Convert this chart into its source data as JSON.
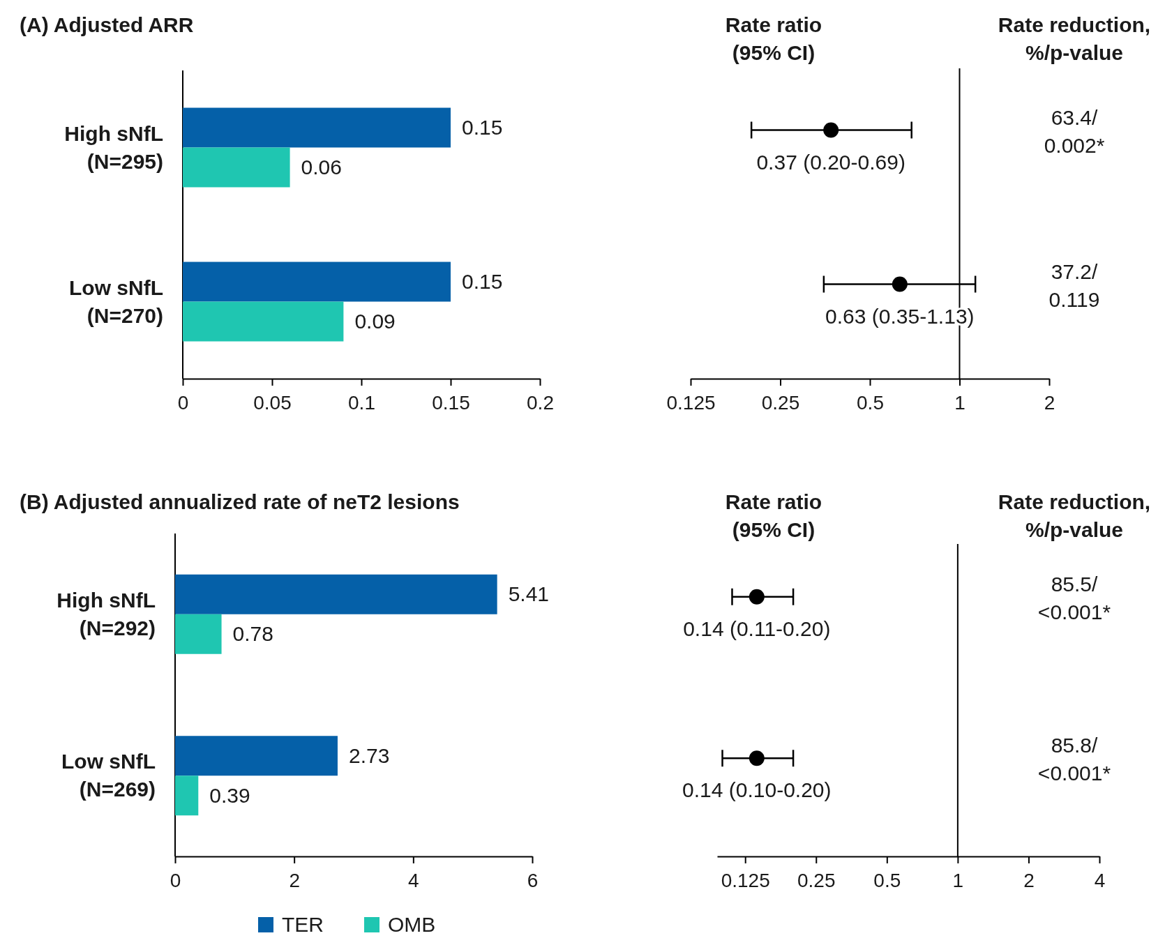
{
  "chart_data": [
    {
      "type": "bar",
      "orientation": "horizontal",
      "title": "(A) Adjusted ARR",
      "categories": [
        "High sNfL\n(N=295)",
        "Low sNfL\n(N=270)"
      ],
      "series": [
        {
          "color": "#0560a8",
          "values": [
            0.15,
            0.15
          ]
        },
        {
          "color": "#1fc6b1",
          "values": [
            0.06,
            0.09
          ]
        }
      ],
      "xlim": [
        0,
        0.2
      ],
      "xticks": [
        0,
        0.05,
        0.1,
        0.15,
        0.2
      ],
      "data_labels": true
    },
    {
      "type": "scatter",
      "orientation": "horizontal",
      "title": "Rate ratio\n(95% CI)",
      "categories": [
        null,
        null
      ],
      "values": [
        0.37,
        0.63
      ],
      "errors": [
        [
          0.2,
          0.69
        ],
        [
          0.35,
          1.13
        ]
      ],
      "value_labels": [
        "0.37 (0.20-0.69)",
        "0.63 (0.35-1.13)"
      ],
      "color": "#000000",
      "marker": "circle",
      "log": "x",
      "xlim": [
        0.125,
        2
      ],
      "xticks": [
        0.125,
        0.25,
        0.5,
        1,
        2
      ],
      "ref_lines": [
        {
          "axis": "x",
          "value": 1
        }
      ],
      "annotations": [
        "Rate reduction,\n%/p-value",
        "63.4/\n0.002*",
        "37.2/\n0.119"
      ]
    },
    {
      "type": "bar",
      "orientation": "horizontal",
      "title": "(B) Adjusted annualized rate of neT2 lesions",
      "categories": [
        "High sNfL\n(N=292)",
        "Low sNfL\n(N=269)"
      ],
      "series": [
        {
          "name": "TER",
          "color": "#0560a8",
          "values": [
            5.41,
            2.73
          ]
        },
        {
          "name": "OMB",
          "color": "#1fc6b1",
          "values": [
            0.78,
            0.39
          ]
        }
      ],
      "xlim": [
        0,
        6
      ],
      "xticks": [
        0,
        2,
        4,
        6
      ],
      "data_labels": true,
      "legend": "bottom"
    },
    {
      "type": "scatter",
      "orientation": "horizontal",
      "title": "Rate ratio\n(95% CI)",
      "categories": [
        null,
        null
      ],
      "values": [
        0.14,
        0.14
      ],
      "errors": [
        [
          0.11,
          0.2
        ],
        [
          0.1,
          0.2
        ]
      ],
      "value_labels": [
        "0.14 (0.11-0.20)",
        "0.14 (0.10-0.20)"
      ],
      "color": "#000000",
      "marker": "circle",
      "log": "x",
      "xlim": [
        0.095,
        4
      ],
      "xticks": [
        0.125,
        0.25,
        0.5,
        1,
        2,
        4
      ],
      "ref_lines": [
        {
          "axis": "x",
          "value": 1
        }
      ],
      "annotations": [
        "Rate reduction,\n%/p-value",
        "85.5/\n<0.001*",
        "85.8/\n<0.001*"
      ]
    }
  ]
}
